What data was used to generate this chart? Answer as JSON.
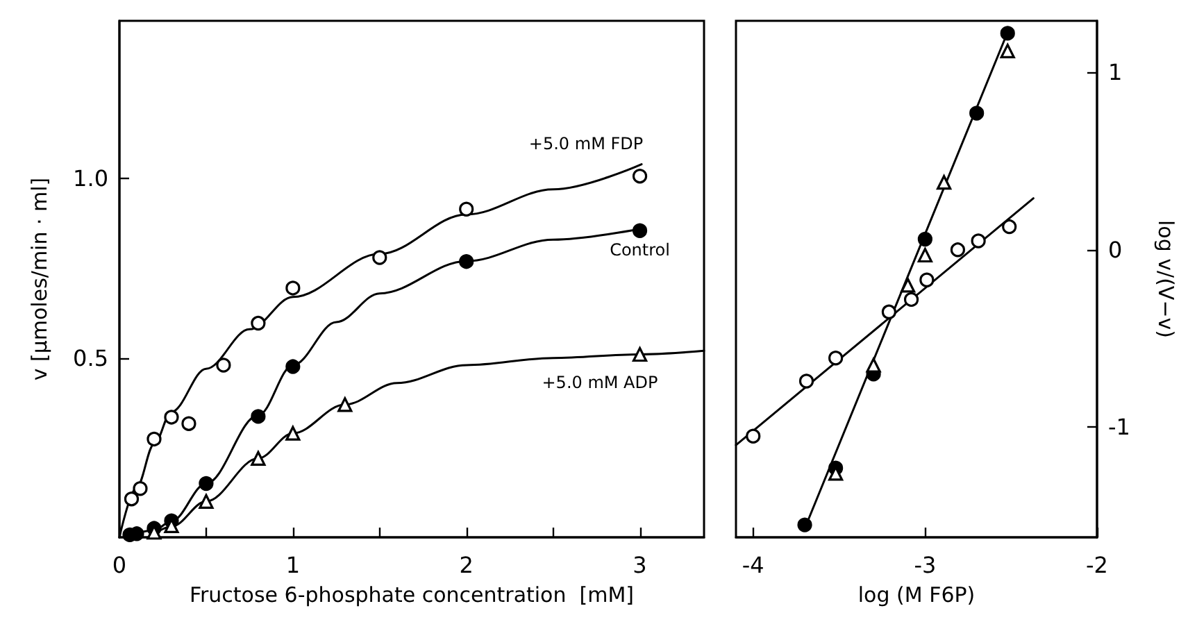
{
  "chart_data": [
    {
      "type": "scatter",
      "xlabel": "Fructose 6-phosphate concentration  [mM]",
      "ylabel": "v [µmoles/min · ml]",
      "xlim": [
        0,
        3.37
      ],
      "ylim": [
        0,
        1.44
      ],
      "xticks": [
        0,
        {
          "value": 0.5,
          "label": null
        },
        1,
        {
          "value": 1.5,
          "label": null
        },
        2,
        {
          "value": 2.5,
          "label": null
        },
        3
      ],
      "yticks": [
        {
          "value": 0.5,
          "label": "0.5"
        },
        {
          "value": 1,
          "label": "1.0"
        }
      ],
      "series": [
        {
          "name": "+5.0 mM FDP",
          "type": "line",
          "color": "#000000",
          "marker": "none",
          "line_style": "solid",
          "x": [
            0,
            0.1,
            0.2,
            0.3,
            0.5,
            0.75,
            1.0,
            1.5,
            2.0,
            2.5,
            3.01
          ],
          "values": [
            0,
            0.14,
            0.26,
            0.35,
            0.47,
            0.58,
            0.67,
            0.79,
            0.9,
            0.97,
            1.04
          ]
        },
        {
          "color": "#ffffff",
          "marker": "circle",
          "x": [
            0.07,
            0.12,
            0.2,
            0.3,
            0.4,
            0.6,
            0.8,
            1.0,
            1.5,
            2.0,
            3.0
          ],
          "values": [
            0.107,
            0.136,
            0.274,
            0.335,
            0.317,
            0.48,
            0.597,
            0.695,
            0.78,
            0.915,
            1.007
          ]
        },
        {
          "name": "Control",
          "type": "line",
          "color": "#000000",
          "marker": "none",
          "line_style": "solid",
          "x": [
            0.06,
            0.2,
            0.3,
            0.5,
            0.8,
            1.0,
            1.25,
            1.5,
            2.0,
            2.5,
            3.0
          ],
          "values": [
            0.005,
            0.02,
            0.045,
            0.15,
            0.34,
            0.48,
            0.6,
            0.68,
            0.77,
            0.83,
            0.86
          ]
        },
        {
          "color": "#000000",
          "marker": "circle",
          "x": [
            0.06,
            0.1,
            0.2,
            0.3,
            0.5,
            0.8,
            1.0,
            2.0,
            3.0
          ],
          "values": [
            0.007,
            0.01,
            0.025,
            0.046,
            0.15,
            0.337,
            0.476,
            0.769,
            0.855
          ]
        },
        {
          "name": "+5.0 mM ADP",
          "type": "line",
          "color": "#000000",
          "marker": "none",
          "line_style": "solid",
          "x": [
            0.2,
            0.3,
            0.5,
            0.8,
            1.0,
            1.3,
            1.6,
            2.0,
            2.5,
            3.0,
            3.37
          ],
          "values": [
            0.01,
            0.03,
            0.1,
            0.22,
            0.29,
            0.37,
            0.43,
            0.48,
            0.5,
            0.51,
            0.52
          ]
        },
        {
          "color": "#ffffff",
          "marker": "triangle",
          "x": [
            0.2,
            0.3,
            0.5,
            0.8,
            1.0,
            1.3,
            3.0
          ],
          "values": [
            0.014,
            0.032,
            0.1,
            0.22,
            0.29,
            0.37,
            0.51
          ]
        }
      ]
    },
    {
      "type": "scatter",
      "xlabel": "log (M F6P)",
      "ylabel": "log v/(V−v)",
      "xlim": [
        -4.1,
        -2
      ],
      "ylim": [
        -1.62,
        1.29
      ],
      "xticks": [
        -4,
        -3,
        -2
      ],
      "yticks": [
        -1,
        0,
        1
      ],
      "series": [
        {
          "type": "line",
          "color": "#000000",
          "marker": "none",
          "line_style": "solid",
          "x": [
            -4.1,
            -2.37
          ],
          "values": [
            -1.1,
            0.29
          ]
        },
        {
          "type": "line",
          "color": "#000000",
          "marker": "none",
          "line_style": "solid",
          "x": [
            -3.7,
            -2.51
          ],
          "values": [
            -1.57,
            1.25
          ]
        },
        {
          "color": "#ffffff",
          "marker": "circle",
          "x": [
            -4.0,
            -3.69,
            -3.52,
            -3.21,
            -3.08,
            -2.99,
            -2.81,
            -2.69,
            -2.51
          ],
          "values": [
            -1.05,
            -0.74,
            -0.61,
            -0.35,
            -0.28,
            -0.17,
            0.0,
            0.05,
            0.13
          ]
        },
        {
          "color": "#000000",
          "marker": "circle",
          "x": [
            -3.7,
            -3.52,
            -3.3,
            -3.0,
            -2.7,
            -2.52
          ],
          "values": [
            -1.55,
            -1.23,
            -0.7,
            0.06,
            0.77,
            1.22
          ]
        },
        {
          "color": "#ffffff",
          "marker": "triangle",
          "x": [
            -3.52,
            -3.3,
            -3.1,
            -3.0,
            -2.89,
            -2.52
          ],
          "values": [
            -1.26,
            -0.65,
            -0.2,
            -0.03,
            0.38,
            1.12
          ]
        }
      ]
    }
  ]
}
